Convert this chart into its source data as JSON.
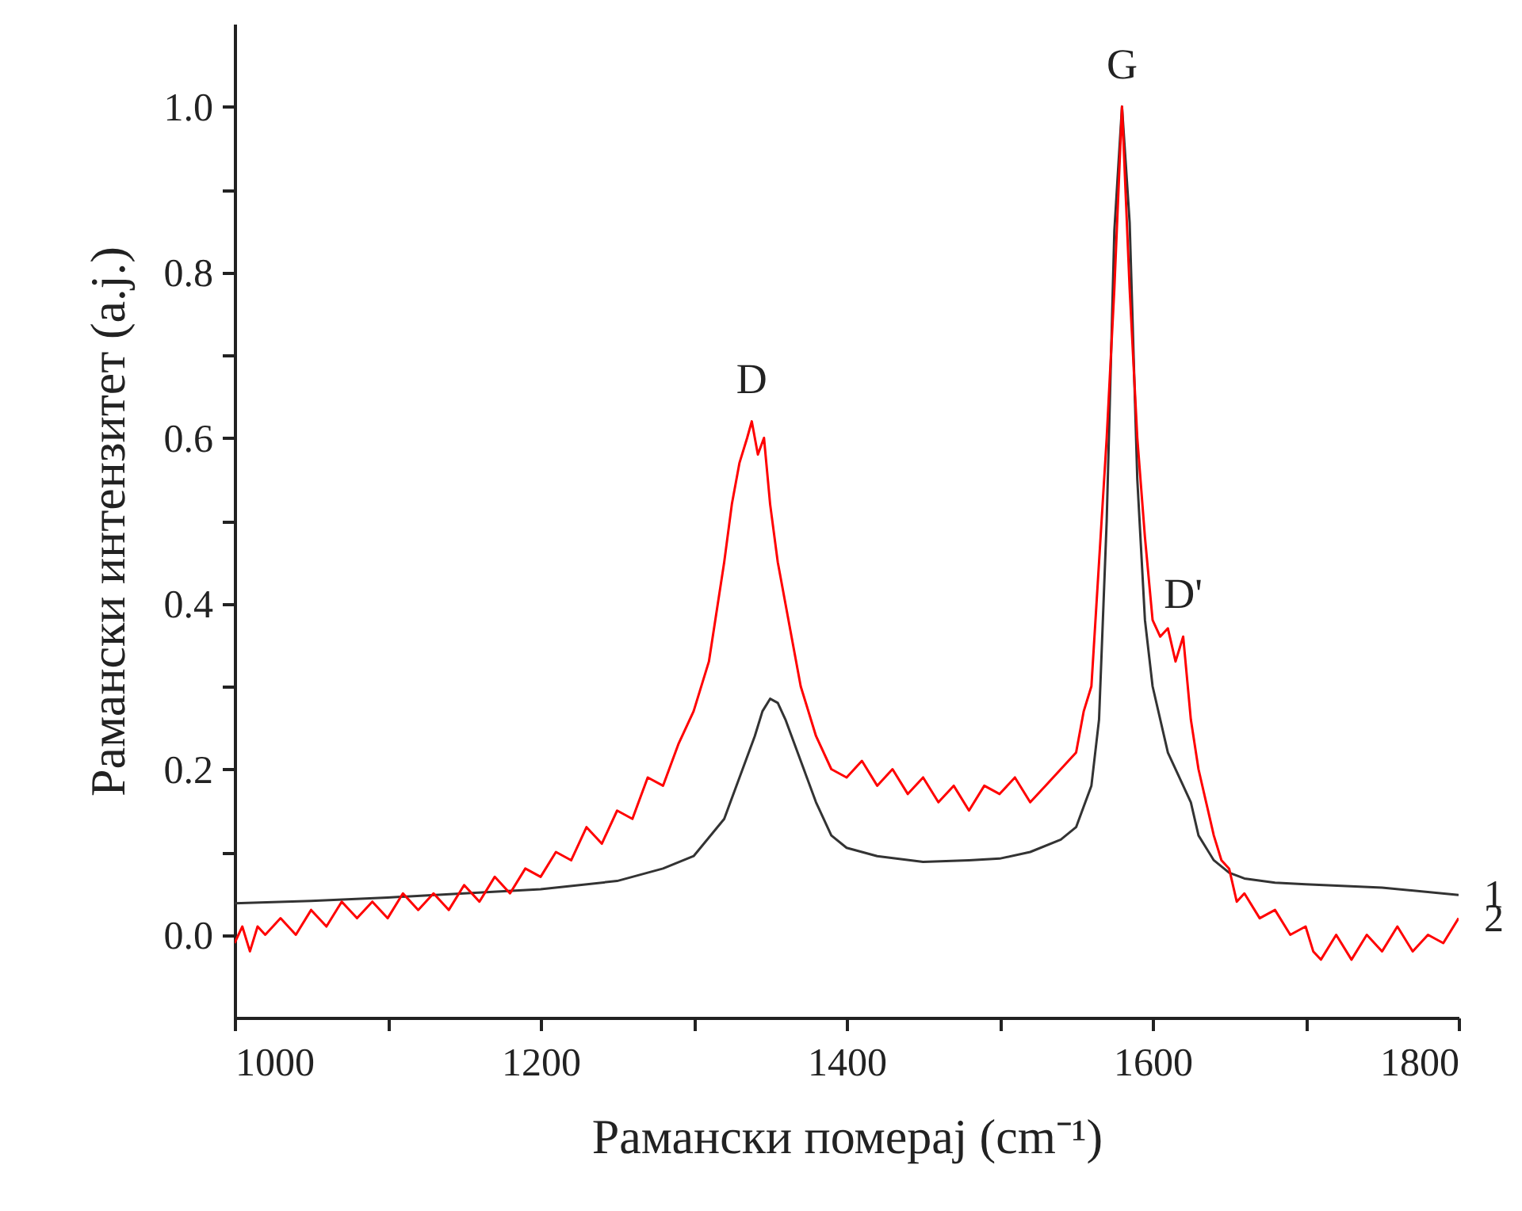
{
  "chart_data": {
    "type": "line",
    "xlabel": "Рамански померај (cm⁻¹)",
    "ylabel": "Рамански интензитет (a.j.)",
    "xlim": [
      1000,
      1800
    ],
    "xticks": [
      1000,
      {
        "value": 1100,
        "label": null
      },
      1200,
      {
        "value": 1300,
        "label": null
      },
      1400,
      {
        "value": 1500,
        "label": null
      },
      1600,
      {
        "value": 1700,
        "label": null
      },
      1800
    ],
    "ylim": [
      -0.1,
      1.1
    ],
    "yticks": [
      {
        "value": 0,
        "label": "0.0"
      },
      {
        "value": 0.1,
        "label": null
      },
      0.2,
      {
        "value": 0.3,
        "label": null
      },
      0.4,
      {
        "value": 0.5,
        "label": null
      },
      0.6,
      {
        "value": 0.7,
        "label": null
      },
      0.8,
      {
        "value": 0.9,
        "label": null
      },
      {
        "value": 1,
        "label": "1.0"
      }
    ],
    "grid": false,
    "legend": false,
    "marker": "none",
    "line_style": "solid",
    "annotations": [
      {
        "text": "D",
        "x": 1338,
        "y": 0.62
      },
      {
        "text": "G",
        "x": 1580,
        "y": 1.0
      },
      {
        "text": "D'",
        "x": 1620,
        "y": 0.36
      }
    ],
    "series": [
      {
        "name": "1",
        "color": "#333333",
        "x": [
          1000,
          1050,
          1100,
          1150,
          1200,
          1250,
          1280,
          1300,
          1320,
          1330,
          1340,
          1345,
          1350,
          1355,
          1360,
          1370,
          1380,
          1390,
          1400,
          1420,
          1450,
          1480,
          1500,
          1520,
          1540,
          1550,
          1560,
          1565,
          1570,
          1575,
          1580,
          1585,
          1590,
          1595,
          1600,
          1610,
          1620,
          1625,
          1630,
          1640,
          1650,
          1660,
          1680,
          1700,
          1750,
          1800
        ],
        "values": [
          0.038,
          0.041,
          0.045,
          0.05,
          0.055,
          0.065,
          0.08,
          0.095,
          0.14,
          0.19,
          0.24,
          0.27,
          0.285,
          0.28,
          0.26,
          0.21,
          0.16,
          0.12,
          0.105,
          0.095,
          0.088,
          0.09,
          0.092,
          0.1,
          0.115,
          0.13,
          0.18,
          0.26,
          0.5,
          0.85,
          1.0,
          0.86,
          0.55,
          0.38,
          0.3,
          0.22,
          0.18,
          0.16,
          0.12,
          0.09,
          0.075,
          0.068,
          0.063,
          0.061,
          0.057,
          0.048
        ]
      },
      {
        "name": "2",
        "color": "#ff0000",
        "x": [
          1000,
          1005,
          1010,
          1015,
          1020,
          1030,
          1040,
          1050,
          1060,
          1070,
          1080,
          1090,
          1100,
          1110,
          1120,
          1130,
          1140,
          1150,
          1160,
          1170,
          1180,
          1190,
          1200,
          1210,
          1220,
          1230,
          1240,
          1250,
          1260,
          1270,
          1280,
          1290,
          1300,
          1310,
          1320,
          1325,
          1330,
          1335,
          1338,
          1342,
          1346,
          1350,
          1355,
          1360,
          1370,
          1380,
          1390,
          1400,
          1410,
          1420,
          1430,
          1440,
          1450,
          1460,
          1470,
          1480,
          1490,
          1500,
          1510,
          1520,
          1530,
          1540,
          1550,
          1555,
          1560,
          1565,
          1570,
          1575,
          1580,
          1585,
          1590,
          1595,
          1600,
          1605,
          1610,
          1615,
          1620,
          1625,
          1630,
          1635,
          1640,
          1645,
          1650,
          1655,
          1660,
          1670,
          1680,
          1690,
          1700,
          1705,
          1710,
          1720,
          1730,
          1740,
          1750,
          1760,
          1770,
          1780,
          1790,
          1800
        ],
        "values": [
          -0.01,
          0.01,
          -0.02,
          0.01,
          0.0,
          0.02,
          0.0,
          0.03,
          0.01,
          0.04,
          0.02,
          0.04,
          0.02,
          0.05,
          0.03,
          0.05,
          0.03,
          0.06,
          0.04,
          0.07,
          0.05,
          0.08,
          0.07,
          0.1,
          0.09,
          0.13,
          0.11,
          0.15,
          0.14,
          0.19,
          0.18,
          0.23,
          0.27,
          0.33,
          0.45,
          0.52,
          0.57,
          0.6,
          0.62,
          0.58,
          0.6,
          0.52,
          0.45,
          0.4,
          0.3,
          0.24,
          0.2,
          0.19,
          0.21,
          0.18,
          0.2,
          0.17,
          0.19,
          0.16,
          0.18,
          0.15,
          0.18,
          0.17,
          0.19,
          0.16,
          0.18,
          0.2,
          0.22,
          0.27,
          0.3,
          0.45,
          0.6,
          0.78,
          1.0,
          0.78,
          0.6,
          0.48,
          0.38,
          0.36,
          0.37,
          0.33,
          0.36,
          0.26,
          0.2,
          0.16,
          0.12,
          0.09,
          0.08,
          0.04,
          0.05,
          0.02,
          0.03,
          0.0,
          0.01,
          -0.02,
          -0.03,
          0.0,
          -0.03,
          0.0,
          -0.02,
          0.01,
          -0.02,
          0.0,
          -0.01,
          0.02
        ]
      }
    ]
  }
}
